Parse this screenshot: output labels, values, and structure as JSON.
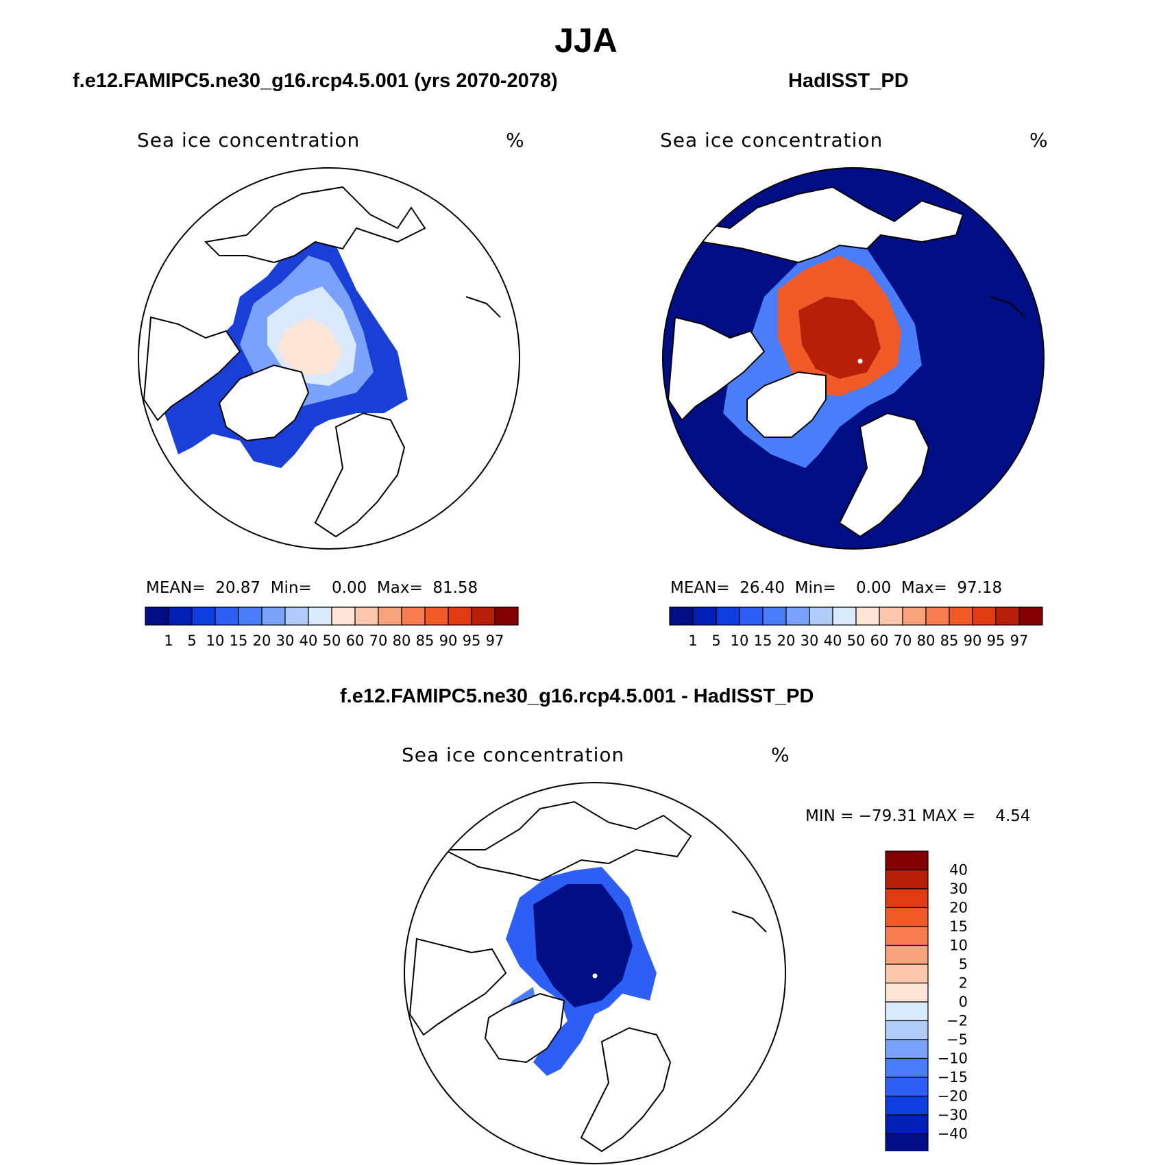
{
  "title": "JJA",
  "colors": {
    "ice_scale": [
      "#000e85",
      "#001fb5",
      "#0d3fe0",
      "#2d5ef5",
      "#4a7dfa",
      "#7ba2fb",
      "#b3cdfb",
      "#dbe9fc",
      "#fde6d8",
      "#fbc7ad",
      "#f9a27e",
      "#f77c50",
      "#f25a28",
      "#e03a10",
      "#b81f08",
      "#820000"
    ],
    "diff_scale": [
      "#000e85",
      "#001fb5",
      "#0d3fe0",
      "#2d5ef5",
      "#4a7dfa",
      "#7ba2fb",
      "#b3cdfb",
      "#dbe9fc",
      "#fde6d8",
      "#fbc7ad",
      "#f9a27e",
      "#f77c50",
      "#f25a28",
      "#e03a10",
      "#b81f08",
      "#820000"
    ],
    "land_outline": "#000000"
  },
  "panels": [
    {
      "title": "f.e12.FAMIPC5.ne30_g16.rcp4.5.001 (yrs 2070-2078)",
      "variable": "Sea ice concentration",
      "units": "%",
      "stats": {
        "mean_label": "MEAN=",
        "mean": "20.87",
        "min_label": "Min=",
        "min": "0.00",
        "max_label": "Max=",
        "max": "81.58"
      }
    },
    {
      "title": "HadISST_PD",
      "variable": "Sea ice concentration",
      "units": "%",
      "stats": {
        "mean_label": "MEAN=",
        "mean": "26.40",
        "min_label": "Min=",
        "min": "0.00",
        "max_label": "Max=",
        "max": "97.18"
      }
    },
    {
      "title": "f.e12.FAMIPC5.ne30_g16.rcp4.5.001 - HadISST_PD",
      "variable": "Sea ice concentration",
      "units": "%",
      "stats": {
        "min_label": "MIN =",
        "min": "−79.31",
        "max_label": "MAX =",
        "max": "4.54"
      }
    }
  ],
  "ice_levels": [
    "1",
    "5",
    "10",
    "15",
    "20",
    "30",
    "40",
    "50",
    "60",
    "70",
    "80",
    "85",
    "90",
    "95",
    "97"
  ],
  "diff_levels": [
    "40",
    "30",
    "20",
    "15",
    "10",
    "5",
    "2",
    "0",
    "−2",
    "−5",
    "−10",
    "−15",
    "−20",
    "−30",
    "−40"
  ]
}
